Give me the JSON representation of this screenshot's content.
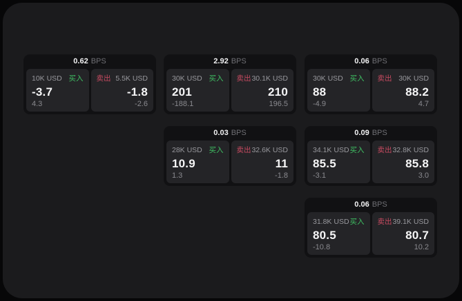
{
  "colors": {
    "page_bg": "#070708",
    "panel_bg": "#1b1b1d",
    "card_bg": "#111113",
    "tile_bg": "#242427",
    "text_primary": "#f5f5f6",
    "text_muted": "#8a8a8f",
    "buy_green": "#3fbf63",
    "sell_red": "#c64a60"
  },
  "labels": {
    "bps_suffix": "BPS",
    "buy": "买入",
    "sell": "卖出"
  },
  "cards": [
    {
      "bps": "0.62",
      "buy": {
        "amount": "10K USD",
        "value": "-3.7",
        "delta": "4.3"
      },
      "sell": {
        "amount": "5.5K USD",
        "value": "-1.8",
        "delta": "-2.6"
      }
    },
    {
      "bps": "2.92",
      "buy": {
        "amount": "30K USD",
        "value": "201",
        "delta": "-188.1"
      },
      "sell": {
        "amount": "30.1K USD",
        "value": "210",
        "delta": "196.5"
      }
    },
    {
      "bps": "0.03",
      "buy": {
        "amount": "28K USD",
        "value": "10.9",
        "delta": "1.3"
      },
      "sell": {
        "amount": "32.6K USD",
        "value": "11",
        "delta": "-1.8"
      }
    },
    {
      "bps": "0.06",
      "buy": {
        "amount": "30K USD",
        "value": "88",
        "delta": "-4.9"
      },
      "sell": {
        "amount": "30K USD",
        "value": "88.2",
        "delta": "4.7"
      }
    },
    {
      "bps": "0.09",
      "buy": {
        "amount": "34.1K USD",
        "value": "85.5",
        "delta": "-3.1"
      },
      "sell": {
        "amount": "32.8K USD",
        "value": "85.8",
        "delta": "3.0"
      }
    },
    {
      "bps": "0.06",
      "buy": {
        "amount": "31.8K USD",
        "value": "80.5",
        "delta": "-10.8"
      },
      "sell": {
        "amount": "39.1K USD",
        "value": "80.7",
        "delta": "10.2"
      }
    }
  ]
}
